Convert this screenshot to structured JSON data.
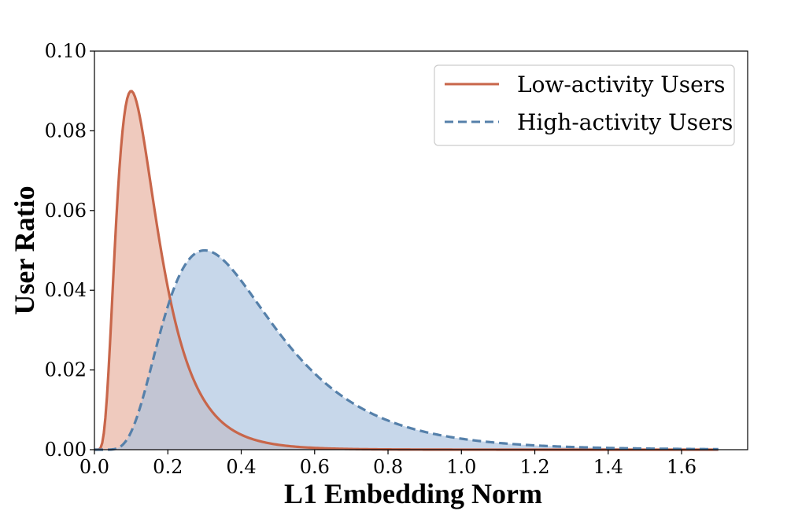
{
  "chart_data": {
    "type": "area",
    "title": "",
    "xlabel": "L1 Embedding Norm",
    "ylabel": "User Ratio",
    "xlim": [
      0.0,
      1.78
    ],
    "ylim": [
      0.0,
      0.1
    ],
    "xticks": [
      "0.0",
      "0.2",
      "0.4",
      "0.6",
      "0.8",
      "1.0",
      "1.2",
      "1.4",
      "1.6"
    ],
    "yticks": [
      "0.00",
      "0.02",
      "0.04",
      "0.06",
      "0.08",
      "0.10"
    ],
    "grid": false,
    "legend_position": "top-right",
    "x_range": [
      0.0,
      1.7
    ],
    "series": [
      {
        "name": "Low-activity Users",
        "line_style": "solid",
        "color": "#c8664a",
        "fill_color": "#e8b3a2",
        "peak_x": 0.1,
        "peak_y": 0.09,
        "x": [
          0.0,
          0.02,
          0.04,
          0.06,
          0.08,
          0.1,
          0.12,
          0.15,
          0.2,
          0.25,
          0.3,
          0.35,
          0.4,
          0.5,
          0.6,
          0.8,
          1.0,
          1.2,
          1.7
        ],
        "y": [
          0.0,
          0.011,
          0.046,
          0.075,
          0.088,
          0.09,
          0.086,
          0.074,
          0.049,
          0.029,
          0.016,
          0.0082,
          0.0041,
          0.0009,
          0.0002,
          0.0,
          0.0,
          0.0,
          0.0
        ]
      },
      {
        "name": "High-activity Users",
        "line_style": "dashed",
        "color": "#5580aa",
        "fill_color": "#a9c1de",
        "peak_x": 0.3,
        "peak_y": 0.05,
        "x": [
          0.0,
          0.05,
          0.1,
          0.15,
          0.2,
          0.25,
          0.3,
          0.35,
          0.4,
          0.5,
          0.6,
          0.7,
          0.8,
          0.9,
          1.0,
          1.2,
          1.4,
          1.7
        ],
        "y": [
          0.0,
          0.0012,
          0.0091,
          0.022,
          0.035,
          0.046,
          0.05,
          0.048,
          0.043,
          0.031,
          0.019,
          0.0107,
          0.0055,
          0.0027,
          0.0012,
          0.0002,
          0.0,
          0.0
        ]
      }
    ]
  }
}
